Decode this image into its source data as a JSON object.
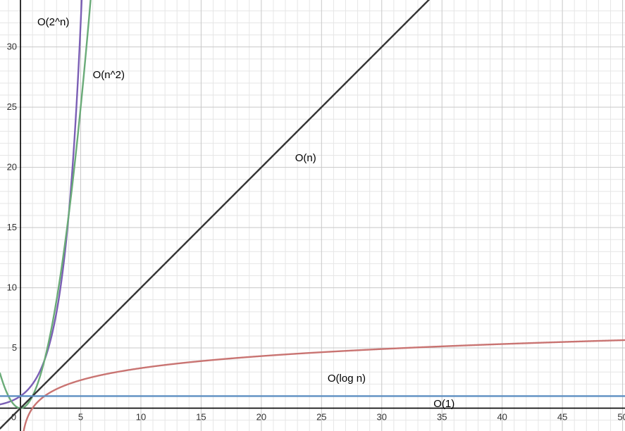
{
  "chart_data": {
    "type": "line",
    "title": "",
    "xlabel": "",
    "ylabel": "",
    "xlim": [
      -1.7,
      50.2
    ],
    "ylim": [
      -1.9,
      33.9
    ],
    "major_step": 5,
    "minor_step": 1,
    "grid": true,
    "x_ticks": [
      {
        "value": 0,
        "label": "0"
      },
      {
        "value": 5,
        "label": "5"
      },
      {
        "value": 10,
        "label": "10"
      },
      {
        "value": 15,
        "label": "15"
      },
      {
        "value": 20,
        "label": "20"
      },
      {
        "value": 25,
        "label": "25"
      },
      {
        "value": 30,
        "label": "30"
      },
      {
        "value": 35,
        "label": "35"
      },
      {
        "value": 40,
        "label": "40"
      },
      {
        "value": 45,
        "label": "45"
      },
      {
        "value": 50,
        "label": "50"
      }
    ],
    "y_ticks": [
      {
        "value": 5,
        "label": "5"
      },
      {
        "value": 10,
        "label": "10"
      },
      {
        "value": 15,
        "label": "15"
      },
      {
        "value": 20,
        "label": "20"
      },
      {
        "value": 25,
        "label": "25"
      },
      {
        "value": 30,
        "label": "30"
      }
    ],
    "series": [
      {
        "name": "O(2^n)",
        "function": "2^x",
        "color": "#7b5fb5",
        "label_at": [
          1.4,
          31.8
        ]
      },
      {
        "name": "O(n^2)",
        "function": "x^2",
        "color": "#6aab78",
        "label_at": [
          6.0,
          27.4
        ]
      },
      {
        "name": "O(n)",
        "function": "x",
        "color": "#333333",
        "label_at": [
          22.8,
          20.5
        ]
      },
      {
        "name": "O(log n)",
        "function": "log2(x)",
        "color": "#c97472",
        "label_at": [
          25.5,
          2.2
        ]
      },
      {
        "name": "O(1)",
        "function": "1",
        "color": "#5e8fc2",
        "label_at": [
          34.3,
          0.1
        ]
      }
    ]
  }
}
